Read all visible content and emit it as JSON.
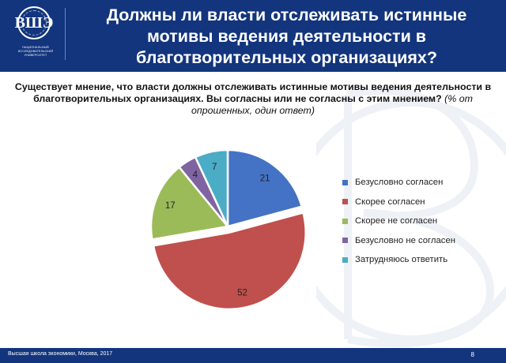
{
  "header": {
    "title_lines": [
      "Должны ли власти отслеживать истинные",
      "мотивы ведения деятельности в",
      "благотворительных организациях?"
    ],
    "logo": {
      "emblem": "ВШЭ",
      "caption": "НАЦИОНАЛЬНЫЙ ИССЛЕДОВАТЕЛЬСКИЙ УНИВЕРСИТЕТ"
    },
    "background_color": "#13357d"
  },
  "question": {
    "text": "Существует мнение, что власти должны отслеживать истинные мотивы ведения деятельности в благотворительных организациях. Вы согласны или не согласны с этим мнением?",
    "note": "(% от опрошенных, один ответ)"
  },
  "chart_data": {
    "type": "pie",
    "slices": [
      {
        "label": "Безусловно согласен",
        "value": 21,
        "color": "#4472c4"
      },
      {
        "label": "Скорее согласен",
        "value": 52,
        "color": "#c0504d"
      },
      {
        "label": "Скорее не согласен",
        "value": 17,
        "color": "#9bbb59"
      },
      {
        "label": "Безусловно не согласен",
        "value": 4,
        "color": "#8064a2"
      },
      {
        "label": "Затрудняюсь ответить",
        "value": 7,
        "color": "#4bacc6"
      }
    ],
    "exploded_slice": "Скорее согласен",
    "start_position": "top",
    "direction": "clockwise",
    "legend_position": "right"
  },
  "footer": {
    "text": "Высшая школа экономики, Москва, 2017",
    "page": "8"
  }
}
